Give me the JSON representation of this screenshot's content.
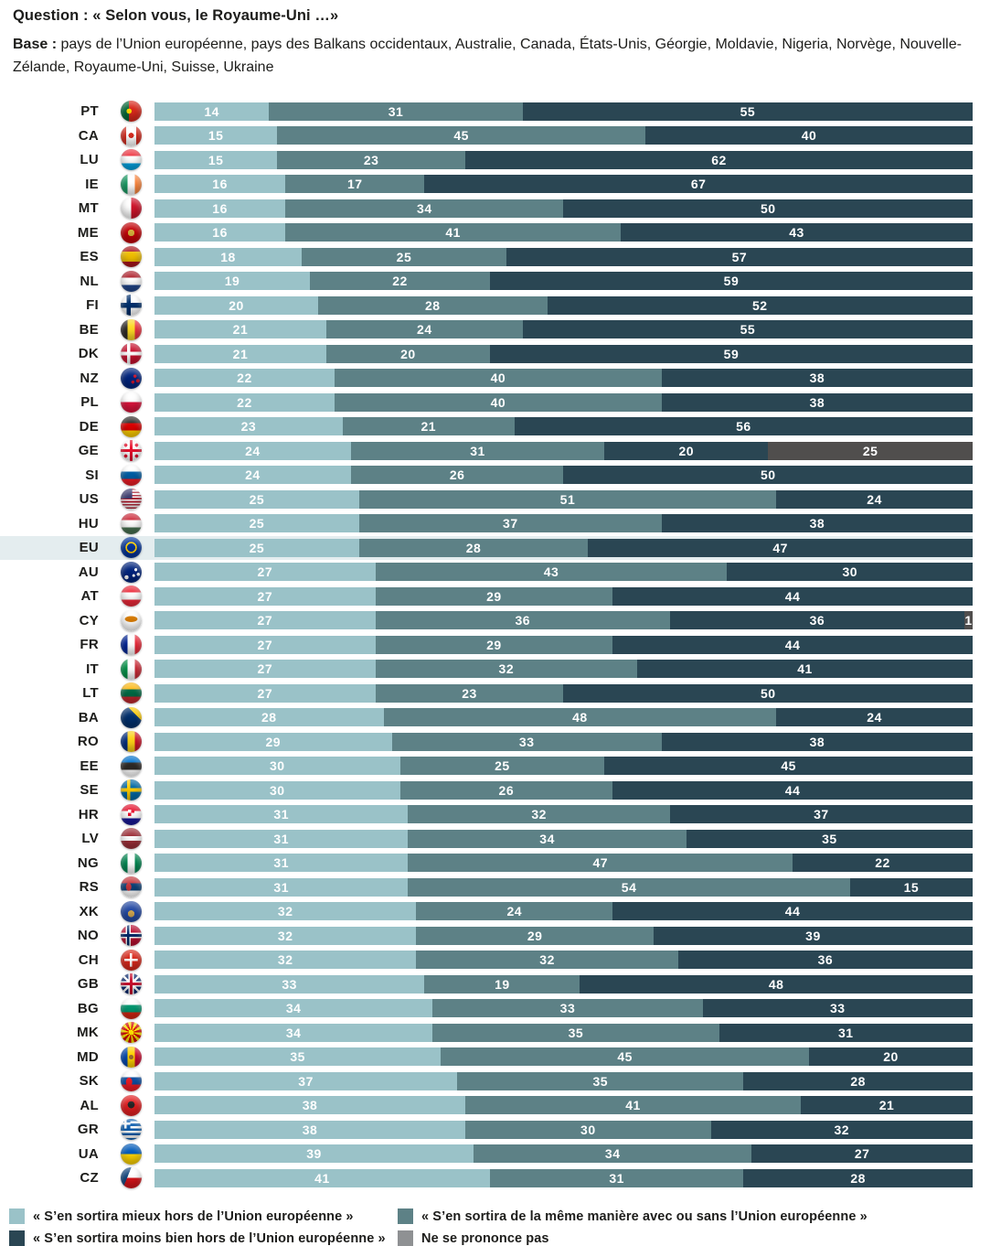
{
  "header": {
    "question_label": "Question :",
    "question_text": "« Selon vous, le Royaume-Uni …»",
    "base_label": "Base :",
    "base_text": "pays de l’Union européenne, pays des Balkans occidentaux, Australie, Canada, États-Unis, Géorgie, Moldavie, Nigeria, Norvège, Nouvelle-Zélande, Royaume-Uni, Suisse, Ukraine"
  },
  "colors": {
    "better_off": "#9ac2c8",
    "same": "#5d8186",
    "worse_off": "#2a4653",
    "no_answer": "#504e4d",
    "no_answer_legend": "#8f9193",
    "highlight_row": "#e4edef",
    "value_label": "#ffffff"
  },
  "legend": [
    {
      "color_key": "better_off",
      "label": "« S’en sortira mieux hors de l’Union européenne »",
      "column": "left"
    },
    {
      "color_key": "worse_off",
      "label": "« S’en sortira moins bien hors de l’Union européenne »",
      "column": "left"
    },
    {
      "color_key": "same",
      "label": "« S’en sortira de la même manière avec ou sans l’Union européenne »",
      "column": "right"
    },
    {
      "color_key": "no_answer",
      "label": "Ne se prononce pas",
      "column": "right"
    }
  ],
  "chart_data": {
    "type": "bar",
    "orientation": "horizontal",
    "stacked": true,
    "xlim": [
      0,
      100
    ],
    "grid": false,
    "legend_position": "bottom",
    "series_names": [
      "« S’en sortira mieux hors de l’Union européenne »",
      "« S’en sortira de la même manière avec ou sans l’Union européenne »",
      "« S’en sortira moins bien hors de l’Union européenne »",
      "Ne se prononce pas"
    ],
    "highlighted_row": "EU",
    "rows": [
      {
        "code": "PT",
        "values": [
          14,
          31,
          55,
          0
        ],
        "flag": "radial-gradient(circle at 40% 50%, #ffdd00 0 15%, rgba(0,0,0,0) 16%), linear-gradient(90deg, #046a38 0 40%, #da291c 40%)"
      },
      {
        "code": "CA",
        "values": [
          15,
          45,
          40,
          0
        ],
        "flag": "radial-gradient(circle at 50% 48%, #d52b1e 0 17%, rgba(0,0,0,0) 18%), linear-gradient(90deg, #d52b1e 0 27%, #ffffff 27% 73%, #d52b1e 73%)"
      },
      {
        "code": "LU",
        "values": [
          15,
          23,
          62,
          0
        ],
        "flag": "linear-gradient(180deg, #ef3340 0 33%, #ffffff 33% 67%, #00a2e1 67%)"
      },
      {
        "code": "IE",
        "values": [
          16,
          17,
          67,
          0
        ],
        "flag": "linear-gradient(90deg, #169b62 0 33%, #ffffff 33% 67%, #ff883e 67%)"
      },
      {
        "code": "MT",
        "values": [
          16,
          34,
          50,
          0
        ],
        "flag": "linear-gradient(90deg, #ffffff 0 50%, #cf142b 50%)"
      },
      {
        "code": "ME",
        "values": [
          16,
          41,
          43,
          0
        ],
        "flag": "radial-gradient(circle at 50% 50%, #d3ae3b 0 22%, rgba(0,0,0,0) 23%), radial-gradient(circle, #c40308 0 76%, #d3ae3b 77%)"
      },
      {
        "code": "ES",
        "values": [
          18,
          25,
          57,
          0
        ],
        "flag": "linear-gradient(180deg, #aa151b 0 27%, #f1bf00 27% 73%, #aa151b 73%)"
      },
      {
        "code": "NL",
        "values": [
          19,
          22,
          59,
          0
        ],
        "flag": "linear-gradient(180deg, #ae1c28 0 33%, #ffffff 33% 67%, #21468b 67%)"
      },
      {
        "code": "FI",
        "values": [
          20,
          28,
          52,
          0
        ],
        "flag": "linear-gradient(90deg, rgba(0,0,0,0) 28%, #002f6c 28% 48%, rgba(0,0,0,0) 48%), linear-gradient(180deg, rgba(0,0,0,0) 40%, #002f6c 40% 62%, rgba(0,0,0,0) 62%), linear-gradient(#ffffff,#ffffff)"
      },
      {
        "code": "BE",
        "values": [
          21,
          24,
          55,
          0
        ],
        "flag": "linear-gradient(90deg, #2d2926 0 33%, #fdda24 33% 67%, #ef3340 67%)"
      },
      {
        "code": "DK",
        "values": [
          21,
          20,
          59,
          0
        ],
        "flag": "linear-gradient(90deg, rgba(0,0,0,0) 30%, #ffffff 30% 46%, rgba(0,0,0,0) 46%), linear-gradient(180deg, rgba(0,0,0,0) 42%, #ffffff 42% 58%, rgba(0,0,0,0) 58%), linear-gradient(#c8102e,#c8102e)"
      },
      {
        "code": "NZ",
        "values": [
          22,
          40,
          38,
          0
        ],
        "flag": "radial-gradient(circle at 68% 40%, #cc142b 0 8%, rgba(0,0,0,0) 9%), radial-gradient(circle at 58% 68%, #cc142b 0 8%, rgba(0,0,0,0) 9%), radial-gradient(circle at 82% 62%, #cc142b 0 8%, rgba(0,0,0,0) 9%), linear-gradient(135deg, #ffffff 0 6%, #c8102e 6% 10%, #ffffff 10% 13%, rgba(0,0,0,0) 13%), linear-gradient(#00247d,#00247d)"
      },
      {
        "code": "PL",
        "values": [
          22,
          40,
          38,
          0
        ],
        "flag": "linear-gradient(180deg, #ffffff 0 50%, #dc143c 50%)"
      },
      {
        "code": "DE",
        "values": [
          23,
          21,
          56,
          0
        ],
        "flag": "linear-gradient(180deg, #2d2926 0 33%, #dd0000 33% 67%, #ffce00 67%)"
      },
      {
        "code": "GE",
        "values": [
          24,
          31,
          20,
          25
        ],
        "flag": "linear-gradient(90deg, rgba(0,0,0,0) 43%, #e8112d 43% 57%, rgba(0,0,0,0) 57%), linear-gradient(180deg, rgba(0,0,0,0) 43%, #e8112d 43% 57%, rgba(0,0,0,0) 57%), radial-gradient(circle at 24% 24%, #e8112d 0 7%, rgba(0,0,0,0) 8%), radial-gradient(circle at 76% 24%, #e8112d 0 7%, rgba(0,0,0,0) 8%), radial-gradient(circle at 24% 76%, #e8112d 0 7%, rgba(0,0,0,0) 8%), radial-gradient(circle at 76% 76%, #e8112d 0 7%, rgba(0,0,0,0) 8%), linear-gradient(#ffffff,#ffffff)"
      },
      {
        "code": "SI",
        "values": [
          24,
          26,
          50,
          0
        ],
        "flag": "linear-gradient(180deg, #ffffff 0 33%, #005da4 33% 67%, #ed1c24 67%)"
      },
      {
        "code": "US",
        "values": [
          25,
          51,
          24,
          0
        ],
        "flag": "linear-gradient(#3c3b6e,#3c3b6e) 0 0/55% 48% no-repeat, repeating-linear-gradient(180deg, #b22234 0 1.7px, #ffffff 1.7px 3.4px)"
      },
      {
        "code": "HU",
        "values": [
          25,
          37,
          38,
          0
        ],
        "flag": "linear-gradient(180deg, #ce2939 0 33%, #ffffff 33% 67%, #477050 67%)"
      },
      {
        "code": "EU",
        "values": [
          25,
          28,
          47,
          0
        ],
        "flag": "radial-gradient(circle, rgba(0,0,0,0) 27%, #ffcc00 28% 38%, rgba(0,0,0,0) 39%), linear-gradient(#003399,#003399)"
      },
      {
        "code": "AU",
        "values": [
          27,
          43,
          30,
          0
        ],
        "flag": "radial-gradient(circle at 72% 38%, #ffffff 0 7%, rgba(0,0,0,0) 8%), radial-gradient(circle at 62% 66%, #ffffff 0 7%, rgba(0,0,0,0) 8%), radial-gradient(circle at 84% 60%, #ffffff 0 7%, rgba(0,0,0,0) 8%), radial-gradient(circle at 28% 74%, #ffffff 0 9%, rgba(0,0,0,0) 10%), linear-gradient(135deg, #ffffff 0 5%, #c8102e 5% 9%, #ffffff 9% 12%, rgba(0,0,0,0) 12%), linear-gradient(#00247d,#00247d)"
      },
      {
        "code": "AT",
        "values": [
          27,
          29,
          44,
          0
        ],
        "flag": "linear-gradient(180deg, #ed2939 0 33%, #ffffff 33% 67%, #ed2939 67%)"
      },
      {
        "code": "CY",
        "values": [
          27,
          36,
          36,
          1
        ],
        "flag": "radial-gradient(ellipse 32% 15% at 50% 42%, #d57800 0 88%, rgba(0,0,0,0) 100%), linear-gradient(#ffffff,#ffffff)"
      },
      {
        "code": "FR",
        "values": [
          27,
          29,
          44,
          0
        ],
        "flag": "linear-gradient(90deg, #002395 0 33%, #ffffff 33% 67%, #ed2939 67%)"
      },
      {
        "code": "IT",
        "values": [
          27,
          32,
          41,
          0
        ],
        "flag": "linear-gradient(90deg, #009246 0 33%, #ffffff 33% 67%, #ce2b37 67%)"
      },
      {
        "code": "LT",
        "values": [
          27,
          23,
          50,
          0
        ],
        "flag": "linear-gradient(180deg, #fdb913 0 33%, #006a44 33% 67%, #c1272d 67%)"
      },
      {
        "code": "BA",
        "values": [
          28,
          48,
          24,
          0
        ],
        "flag": "linear-gradient(225deg, #fecb00 0 32%, rgba(0,0,0,0) 32.5%), linear-gradient(#002f6c,#002f6c)"
      },
      {
        "code": "RO",
        "values": [
          29,
          33,
          38,
          0
        ],
        "flag": "linear-gradient(90deg, #002b7f 0 33%, #fcd116 33% 67%, #ce1126 67%)"
      },
      {
        "code": "EE",
        "values": [
          30,
          25,
          45,
          0
        ],
        "flag": "linear-gradient(180deg, #0072ce 0 33%, #2d2926 33% 67%, #ffffff 67%)"
      },
      {
        "code": "SE",
        "values": [
          30,
          26,
          44,
          0
        ],
        "flag": "linear-gradient(90deg, rgba(0,0,0,0) 30%, #fecc02 30% 46%, rgba(0,0,0,0) 46%), linear-gradient(180deg, rgba(0,0,0,0) 42%, #fecc02 42% 58%, rgba(0,0,0,0) 58%), linear-gradient(#006aa7,#006aa7)"
      },
      {
        "code": "HR",
        "values": [
          31,
          32,
          37,
          0
        ],
        "flag": "repeating-conic-gradient(#e8112d 0 90deg, #ffffff 90deg 180deg) 50% 40%/7px 7px no-repeat, linear-gradient(180deg, #e8112d 0 33%, #ffffff 33% 67%, #171796 67%)"
      },
      {
        "code": "LV",
        "values": [
          31,
          34,
          35,
          0
        ],
        "flag": "linear-gradient(180deg, #9e3039 0 40%, #ffffff 40% 60%, #9e3039 60%)"
      },
      {
        "code": "NG",
        "values": [
          31,
          47,
          22,
          0
        ],
        "flag": "linear-gradient(90deg, #008751 0 33%, #ffffff 33% 67%, #008751 67%)"
      },
      {
        "code": "RS",
        "values": [
          31,
          54,
          15,
          0
        ],
        "flag": "radial-gradient(ellipse 14% 20% at 38% 50%, #c6363c 0 85%, rgba(0,0,0,0) 100%), linear-gradient(180deg, #c6363c 0 33%, #0c4076 33% 67%, #ffffff 67%)"
      },
      {
        "code": "XK",
        "values": [
          32,
          24,
          44,
          0
        ],
        "flag": "radial-gradient(circle at 50% 60%, #d0a650 0 20%, rgba(0,0,0,0) 21%), linear-gradient(#244aa5,#244aa5)"
      },
      {
        "code": "NO",
        "values": [
          32,
          29,
          39,
          0
        ],
        "flag": "linear-gradient(90deg, rgba(0,0,0,0) 30%, #002868 30% 42%, rgba(0,0,0,0) 42%), linear-gradient(180deg, rgba(0,0,0,0) 44%, #002868 44% 56%, rgba(0,0,0,0) 56%), linear-gradient(90deg, rgba(0,0,0,0) 24%, #ffffff 24% 48%, rgba(0,0,0,0) 48%), linear-gradient(180deg, rgba(0,0,0,0) 38%, #ffffff 38% 62%, rgba(0,0,0,0) 62%), linear-gradient(#ba0c2f,#ba0c2f)"
      },
      {
        "code": "CH",
        "values": [
          32,
          32,
          36,
          0
        ],
        "flag": "linear-gradient(90deg, rgba(0,0,0,0) 41%, #ffffff 41% 59%, rgba(0,0,0,0) 59%) 50% 50%/64% 64% no-repeat, linear-gradient(180deg, rgba(0,0,0,0) 41%, #ffffff 41% 59%, rgba(0,0,0,0) 59%) 50% 50%/64% 64% no-repeat, linear-gradient(#da291c,#da291c)"
      },
      {
        "code": "GB",
        "values": [
          33,
          19,
          48,
          0
        ],
        "flag": "linear-gradient(90deg, rgba(0,0,0,0) 44%, #c8102e 44% 56%, rgba(0,0,0,0) 56%), linear-gradient(180deg, rgba(0,0,0,0) 44%, #c8102e 44% 56%, rgba(0,0,0,0) 56%), linear-gradient(90deg, rgba(0,0,0,0) 37%, #ffffff 37% 63%, rgba(0,0,0,0) 63%), linear-gradient(180deg, rgba(0,0,0,0) 37%, #ffffff 37% 63%, rgba(0,0,0,0) 63%), linear-gradient(45deg, rgba(0,0,0,0) 46%, #ffffff 46% 54%, rgba(0,0,0,0) 54%), linear-gradient(-45deg, rgba(0,0,0,0) 46%, #ffffff 46% 54%, rgba(0,0,0,0) 54%), linear-gradient(#012169,#012169)"
      },
      {
        "code": "BG",
        "values": [
          34,
          33,
          33,
          0
        ],
        "flag": "linear-gradient(180deg, #ffffff 0 33%, #00966e 33% 67%, #d62612 67%)"
      },
      {
        "code": "MK",
        "values": [
          34,
          35,
          31,
          0
        ],
        "flag": "radial-gradient(circle, #ffe600 0 16%, rgba(0,0,0,0) 17%), repeating-conic-gradient(#d20000 0 18deg, #ffe600 18deg 36deg)"
      },
      {
        "code": "MD",
        "values": [
          35,
          45,
          20,
          0
        ],
        "flag": "radial-gradient(circle, #9c6b30 0 15%, rgba(0,0,0,0) 16%), linear-gradient(90deg, #0046ae 0 33%, #ffd200 33% 67%, #cc092f 67%)"
      },
      {
        "code": "SK",
        "values": [
          37,
          35,
          28,
          0
        ],
        "flag": "radial-gradient(ellipse 16% 22% at 40% 55%, #ee1c25 0 88%, rgba(0,0,0,0) 100%), linear-gradient(180deg, #ffffff 0 33%, #0b4ea2 33% 67%, #ee1c25 67%)"
      },
      {
        "code": "AL",
        "values": [
          38,
          41,
          21,
          0
        ],
        "flag": "radial-gradient(circle at 50% 46%, #262626 0 22%, rgba(0,0,0,0) 23%), linear-gradient(#e41e20,#e41e20)"
      },
      {
        "code": "GR",
        "values": [
          38,
          30,
          32,
          0
        ],
        "flag": "linear-gradient(90deg, rgba(0,0,0,0) 38%, #ffffff 38% 62%, rgba(0,0,0,0) 62%) 0 0/46% 46% no-repeat, linear-gradient(180deg, rgba(0,0,0,0) 38%, #ffffff 38% 62%, rgba(0,0,0,0) 62%) 0 0/46% 46% no-repeat, linear-gradient(#0d5eaf,#0d5eaf) 0 0/46% 46% no-repeat, repeating-linear-gradient(180deg, #0d5eaf 0 2.6px, #ffffff 2.6px 5.2px)"
      },
      {
        "code": "UA",
        "values": [
          39,
          34,
          27,
          0
        ],
        "flag": "linear-gradient(180deg, #005bbb 0 50%, #ffd500 50%)"
      },
      {
        "code": "CZ",
        "values": [
          41,
          31,
          28,
          0
        ],
        "flag": "linear-gradient(112deg, #11457e 0 36%, rgba(0,0,0,0) 36.5%), linear-gradient(180deg, #ffffff 0 50%, #d7141a 50%)"
      }
    ]
  }
}
